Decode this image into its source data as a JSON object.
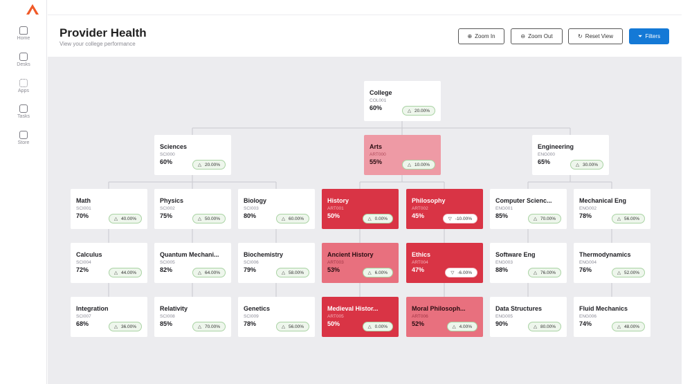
{
  "sidebar": {
    "items": [
      {
        "label": "Home",
        "icon": "home-icon"
      },
      {
        "label": "Desks",
        "icon": "desk-icon"
      },
      {
        "label": "Apps",
        "icon": "apps-icon"
      },
      {
        "label": "Tasks",
        "icon": "tasks-icon"
      },
      {
        "label": "Store",
        "icon": "store-icon"
      }
    ]
  },
  "header": {
    "title": "Provider Health",
    "subtitle": "View your college performance"
  },
  "toolbar": {
    "zoom_in": "Zoom In",
    "zoom_out": "Zoom Out",
    "reset": "Reset View",
    "filters": "Filters"
  },
  "colors": {
    "accent": "#1479d6",
    "critical": "#d93445",
    "warning": "#e8707e",
    "caution": "#ee9aa5",
    "logo": "#f05a28"
  },
  "nodes": [
    {
      "name": "College",
      "code": "COL001",
      "pct": "60%",
      "change": "20.00%",
      "dir": "up",
      "status": "ok"
    },
    {
      "name": "Sciences",
      "code": "SCI000",
      "pct": "60%",
      "change": "20.00%",
      "dir": "up",
      "status": "ok"
    },
    {
      "name": "Arts",
      "code": "ART000",
      "pct": "55%",
      "change": "10.00%",
      "dir": "up",
      "status": "pale"
    },
    {
      "name": "Engineering",
      "code": "ENG000",
      "pct": "65%",
      "change": "30.00%",
      "dir": "up",
      "status": "ok"
    },
    {
      "name": "Math",
      "code": "SCI001",
      "pct": "70%",
      "change": "40.00%",
      "dir": "up",
      "status": "ok"
    },
    {
      "name": "Physics",
      "code": "SCI002",
      "pct": "75%",
      "change": "50.00%",
      "dir": "up",
      "status": "ok"
    },
    {
      "name": "Biology",
      "code": "SCI003",
      "pct": "80%",
      "change": "60.00%",
      "dir": "up",
      "status": "ok"
    },
    {
      "name": "History",
      "code": "ART001",
      "pct": "50%",
      "change": "0.00%",
      "dir": "up",
      "status": "red"
    },
    {
      "name": "Philosophy",
      "code": "ART002",
      "pct": "45%",
      "change": "-10.00%",
      "dir": "down",
      "status": "red"
    },
    {
      "name": "Computer Scienc...",
      "code": "ENG001",
      "pct": "85%",
      "change": "70.00%",
      "dir": "up",
      "status": "ok"
    },
    {
      "name": "Mechanical Eng",
      "code": "ENG002",
      "pct": "78%",
      "change": "56.00%",
      "dir": "up",
      "status": "ok"
    },
    {
      "name": "Calculus",
      "code": "SCI004",
      "pct": "72%",
      "change": "44.00%",
      "dir": "up",
      "status": "ok"
    },
    {
      "name": "Quantum Mechani...",
      "code": "SCI005",
      "pct": "82%",
      "change": "64.00%",
      "dir": "up",
      "status": "ok"
    },
    {
      "name": "Biochemistry",
      "code": "SCI006",
      "pct": "79%",
      "change": "58.00%",
      "dir": "up",
      "status": "ok"
    },
    {
      "name": "Ancient History",
      "code": "ART003",
      "pct": "53%",
      "change": "6.00%",
      "dir": "up",
      "status": "light"
    },
    {
      "name": "Ethics",
      "code": "ART004",
      "pct": "47%",
      "change": "-6.00%",
      "dir": "down",
      "status": "red"
    },
    {
      "name": "Software Eng",
      "code": "ENG003",
      "pct": "88%",
      "change": "76.00%",
      "dir": "up",
      "status": "ok"
    },
    {
      "name": "Thermodynamics",
      "code": "ENG004",
      "pct": "76%",
      "change": "52.00%",
      "dir": "up",
      "status": "ok"
    },
    {
      "name": "Integration",
      "code": "SCI007",
      "pct": "68%",
      "change": "36.00%",
      "dir": "up",
      "status": "ok"
    },
    {
      "name": "Relativity",
      "code": "SCI008",
      "pct": "85%",
      "change": "70.00%",
      "dir": "up",
      "status": "ok"
    },
    {
      "name": "Genetics",
      "code": "SCI009",
      "pct": "78%",
      "change": "56.00%",
      "dir": "up",
      "status": "ok"
    },
    {
      "name": "Medieval Histor...",
      "code": "ART005",
      "pct": "50%",
      "change": "0.00%",
      "dir": "up",
      "status": "red"
    },
    {
      "name": "Moral Philosoph...",
      "code": "ART006",
      "pct": "52%",
      "change": "4.00%",
      "dir": "up",
      "status": "light"
    },
    {
      "name": "Data Structures",
      "code": "ENG005",
      "pct": "90%",
      "change": "80.00%",
      "dir": "up",
      "status": "ok"
    },
    {
      "name": "Fluid Mechanics",
      "code": "ENG006",
      "pct": "74%",
      "change": "48.00%",
      "dir": "up",
      "status": "ok"
    }
  ]
}
